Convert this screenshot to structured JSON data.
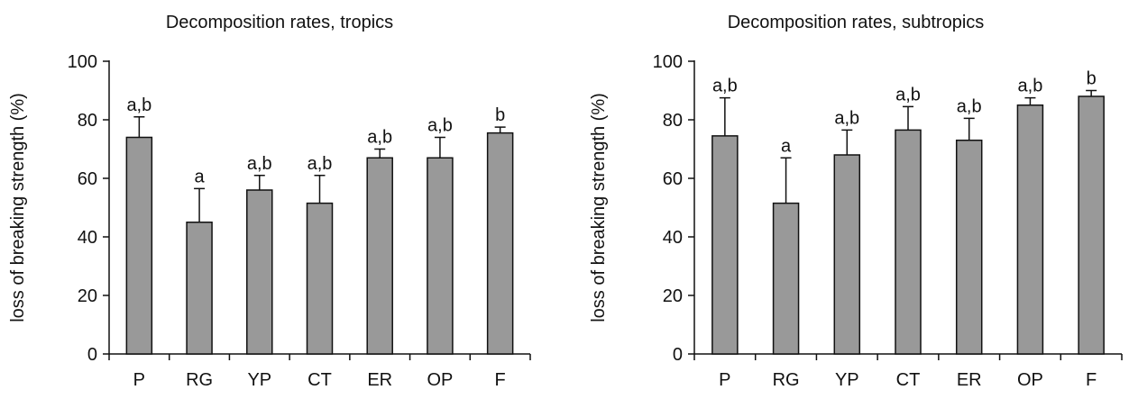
{
  "chart_data": [
    {
      "type": "bar",
      "title": "Decomposition rates, tropics",
      "xlabel": "",
      "ylabel": "loss of breaking strength (%)",
      "categories": [
        "P",
        "RG",
        "YP",
        "CT",
        "ER",
        "OP",
        "F"
      ],
      "values": [
        74,
        45,
        56,
        51.5,
        67,
        67,
        75.5
      ],
      "errors": [
        7,
        11.5,
        5,
        9.5,
        3,
        7,
        2
      ],
      "annotations": [
        "a,b",
        "a",
        "a,b",
        "a,b",
        "a,b",
        "a,b",
        "b"
      ],
      "ylim": [
        0,
        100
      ],
      "yticks": [
        0,
        20,
        40,
        60,
        80,
        100
      ],
      "grid": false,
      "bar_color": "#999999"
    },
    {
      "type": "bar",
      "title": "Decomposition rates, subtropics",
      "xlabel": "",
      "ylabel": "loss of breaking strength (%)",
      "categories": [
        "P",
        "RG",
        "YP",
        "CT",
        "ER",
        "OP",
        "F"
      ],
      "values": [
        74.5,
        51.5,
        68,
        76.5,
        73,
        85,
        88
      ],
      "errors": [
        13,
        15.5,
        8.5,
        8,
        7.5,
        2.5,
        2
      ],
      "annotations": [
        "a,b",
        "a",
        "a,b",
        "a,b",
        "a,b",
        "a,b",
        "b"
      ],
      "ylim": [
        0,
        100
      ],
      "yticks": [
        0,
        20,
        40,
        60,
        80,
        100
      ],
      "grid": false,
      "bar_color": "#999999"
    }
  ]
}
